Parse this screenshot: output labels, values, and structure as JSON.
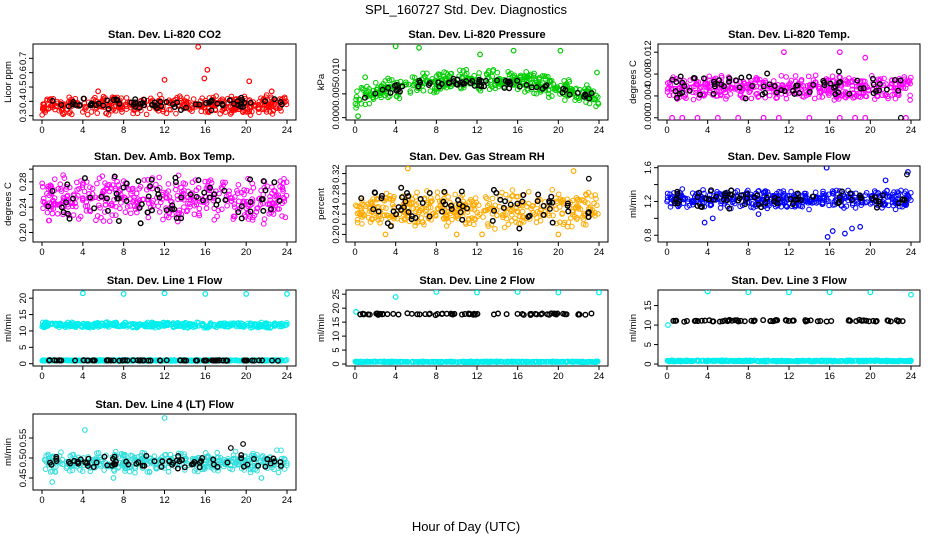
{
  "figure": {
    "title": "SPL_160727  Std. Dev. Diagnostics",
    "xlabel": "Hour of Day (UTC)"
  },
  "chart_data": [
    {
      "type": "scatter",
      "title": "Stan. Dev. Li-820 CO2",
      "ylabel": "Licor ppm",
      "xlim": [
        0,
        24
      ],
      "ylim": [
        0.27,
        0.8
      ],
      "xticks": [
        "0",
        "4",
        "8",
        "12",
        "16",
        "20",
        "24"
      ],
      "yticks": [
        0.3,
        0.4,
        0.5,
        0.6,
        0.7
      ],
      "ytick_labels": [
        "0.3",
        "0.4",
        "0.5",
        "0.6",
        "0.7"
      ],
      "series": [
        {
          "role": "all samples",
          "color": "#ff0000",
          "kind": "band",
          "x_range": [
            0,
            24
          ],
          "y_range": [
            0.3,
            0.45
          ],
          "outliers": [
            [
              15.3,
              0.78
            ],
            [
              16.2,
              0.62
            ],
            [
              15.9,
              0.56
            ],
            [
              12.0,
              0.55
            ],
            [
              20.3,
              0.54
            ],
            [
              5.5,
              0.47
            ],
            [
              22.5,
              0.47
            ]
          ]
        },
        {
          "role": "hourly subset",
          "color": "#000000",
          "kind": "band",
          "x_range": [
            0.5,
            23.5
          ],
          "y_range": [
            0.33,
            0.43
          ],
          "outliers": []
        }
      ]
    },
    {
      "type": "scatter",
      "title": "Stan. Dev. Li-820 Pressure",
      "ylabel": "kPa",
      "xlim": [
        0,
        24
      ],
      "ylim": [
        -0.0005,
        0.0155
      ],
      "xticks": [
        "0",
        "4",
        "8",
        "12",
        "16",
        "20",
        "24"
      ],
      "yticks": [
        0.0,
        0.005,
        0.01
      ],
      "ytick_labels": [
        "0.000",
        "0.005",
        "0.010"
      ],
      "series": [
        {
          "role": "all samples",
          "color": "#00cc00",
          "kind": "arch",
          "x_range": [
            0,
            24
          ],
          "y_base": 0.004,
          "y_peak": 0.008,
          "y_spread": 0.0025,
          "outliers": [
            [
              4.0,
              0.015
            ],
            [
              6.3,
              0.0147
            ],
            [
              12.3,
              0.0133
            ],
            [
              15.6,
              0.0141
            ],
            [
              20.2,
              0.0141
            ],
            [
              1.0,
              0.0085
            ],
            [
              23.8,
              0.0095
            ],
            [
              0.3,
              0.0003
            ]
          ]
        },
        {
          "role": "hourly subset",
          "color": "#000000",
          "kind": "arch",
          "x_range": [
            0.5,
            23.5
          ],
          "y_base": 0.004,
          "y_peak": 0.0075,
          "y_spread": 0.0012,
          "outliers": []
        }
      ]
    },
    {
      "type": "scatter",
      "title": "Stan. Dev. Li-820 Temp.",
      "ylabel": "degrees C",
      "xlim": [
        0,
        24
      ],
      "ylim": [
        -0.0004,
        0.0135
      ],
      "xticks": [
        "0",
        "4",
        "8",
        "12",
        "16",
        "20",
        "24"
      ],
      "yticks": [
        0.0,
        0.004,
        0.008,
        0.012
      ],
      "ytick_labels": [
        "0.000",
        "0.004",
        "0.008",
        "0.012"
      ],
      "series": [
        {
          "role": "all samples",
          "color": "#ff00ff",
          "kind": "band",
          "x_range": [
            0,
            24
          ],
          "y_range": [
            0.003,
            0.008
          ],
          "outliers": [
            [
              0.5,
              0.0
            ],
            [
              1.5,
              0.0
            ],
            [
              3.0,
              0.0
            ],
            [
              5.0,
              0.0
            ],
            [
              7.0,
              0.0
            ],
            [
              9.5,
              0.0
            ],
            [
              11.0,
              0.0
            ],
            [
              14.0,
              0.0
            ],
            [
              17.0,
              0.0
            ],
            [
              18.5,
              0.0
            ],
            [
              19.5,
              0.0
            ],
            [
              23.5,
              0.0
            ],
            [
              11.5,
              0.012
            ],
            [
              17.0,
              0.012
            ],
            [
              19.5,
              0.011
            ]
          ]
        },
        {
          "role": "hourly subset",
          "color": "#000000",
          "kind": "band",
          "x_range": [
            0.5,
            23.5
          ],
          "y_range": [
            0.003,
            0.009
          ],
          "outliers": [
            [
              23.0,
              0.0
            ]
          ]
        }
      ]
    },
    {
      "type": "scatter",
      "title": "Stan. Dev. Amb. Box Temp.",
      "ylabel": "degrees C",
      "xlim": [
        0,
        24
      ],
      "ylim": [
        0.185,
        0.305
      ],
      "xticks": [
        "0",
        "4",
        "8",
        "12",
        "16",
        "20",
        "24"
      ],
      "yticks": [
        0.2,
        0.22,
        0.24,
        0.26,
        0.28,
        0.3
      ],
      "ytick_labels": [
        "0.20",
        "",
        "0.24",
        "",
        "0.28",
        ""
      ],
      "series": [
        {
          "role": "all samples",
          "color": "#ff00ff",
          "kind": "band",
          "x_range": [
            0,
            24
          ],
          "y_range": [
            0.21,
            0.295
          ],
          "outliers": []
        },
        {
          "role": "hourly subset",
          "color": "#000000",
          "kind": "band",
          "x_range": [
            0.5,
            23.5
          ],
          "y_range": [
            0.21,
            0.29
          ],
          "outliers": []
        }
      ]
    },
    {
      "type": "scatter",
      "title": "Stan. Dev. Gas Stream RH",
      "ylabel": "percent",
      "xlim": [
        0,
        24
      ],
      "ylim": [
        0.185,
        0.335
      ],
      "xticks": [
        "0",
        "4",
        "8",
        "12",
        "16",
        "20",
        "24"
      ],
      "yticks": [
        0.2,
        0.22,
        0.24,
        0.26,
        0.28,
        0.3,
        0.32
      ],
      "ytick_labels": [
        "0.20",
        "",
        "0.24",
        "",
        "0.28",
        "",
        "0.32"
      ],
      "series": [
        {
          "role": "all samples",
          "color": "#ffaa00",
          "kind": "band",
          "x_range": [
            0,
            24
          ],
          "y_range": [
            0.21,
            0.29
          ],
          "outliers": [
            [
              5.2,
              0.33
            ],
            [
              21.5,
              0.325
            ],
            [
              3.0,
              0.2
            ],
            [
              10.0,
              0.2
            ],
            [
              12.5,
              0.2
            ],
            [
              20.0,
              0.2
            ]
          ]
        },
        {
          "role": "hourly subset",
          "color": "#000000",
          "kind": "band",
          "x_range": [
            0.5,
            23.5
          ],
          "y_range": [
            0.21,
            0.3
          ],
          "outliers": [
            [
              23.0,
              0.31
            ]
          ]
        }
      ]
    },
    {
      "type": "scatter",
      "title": "Stan. Dev. Sample Flow",
      "ylabel": "ml/min",
      "xlim": [
        0,
        24
      ],
      "ylim": [
        0.72,
        1.62
      ],
      "xticks": [
        "0",
        "4",
        "8",
        "12",
        "16",
        "20",
        "24"
      ],
      "yticks": [
        0.8,
        1.0,
        1.2,
        1.4,
        1.6
      ],
      "ytick_labels": [
        "0.8",
        "",
        "1.2",
        "",
        "1.6"
      ],
      "series": [
        {
          "role": "all samples",
          "color": "#0000ff",
          "kind": "band",
          "x_range": [
            0,
            24
          ],
          "y_range": [
            1.1,
            1.35
          ],
          "outliers": [
            [
              15.7,
              1.6
            ],
            [
              15.8,
              0.78
            ],
            [
              16.3,
              0.85
            ],
            [
              17.5,
              0.82
            ],
            [
              18.2,
              0.88
            ],
            [
              19.0,
              0.9
            ],
            [
              3.7,
              0.95
            ],
            [
              4.5,
              1.0
            ],
            [
              9.0,
              1.05
            ],
            [
              21.5,
              1.45
            ],
            [
              23.7,
              1.55
            ]
          ]
        },
        {
          "role": "hourly subset",
          "color": "#000000",
          "kind": "band",
          "x_range": [
            0.5,
            23.5
          ],
          "y_range": [
            1.1,
            1.35
          ],
          "outliers": [
            [
              23.6,
              1.52
            ]
          ]
        }
      ]
    },
    {
      "type": "scatter",
      "title": "Stan. Dev. Line 1 Flow",
      "ylabel": "ml/min",
      "xlim": [
        0,
        24
      ],
      "ylim": [
        -0.7,
        22.5
      ],
      "xticks": [
        "0",
        "4",
        "8",
        "12",
        "16",
        "20",
        "24"
      ],
      "yticks": [
        0,
        5,
        10,
        15,
        20
      ],
      "ytick_labels": [
        "0",
        "5",
        "10",
        "15",
        "20"
      ],
      "series": [
        {
          "role": "all samples",
          "color": "#00eeee",
          "kind": "band",
          "x_range": [
            0,
            24
          ],
          "y_range": [
            10.8,
            12.8
          ],
          "outliers": [
            [
              4.0,
              21.5
            ],
            [
              8.0,
              21.3
            ],
            [
              12.0,
              21.5
            ],
            [
              16.0,
              21.3
            ],
            [
              20.0,
              21.3
            ],
            [
              24.0,
              21.3
            ]
          ]
        },
        {
          "role": "all samples (low)",
          "color": "#00eeee",
          "kind": "band",
          "x_range": [
            0,
            24
          ],
          "y_range": [
            0.8,
            1.2
          ],
          "outliers": []
        },
        {
          "role": "hourly subset",
          "color": "#000000",
          "kind": "band",
          "x_range": [
            0.5,
            23.5
          ],
          "y_range": [
            0.9,
            1.1
          ],
          "outliers": []
        }
      ]
    },
    {
      "type": "scatter",
      "title": "Stan. Dev. Line 2 Flow",
      "ylabel": "ml/min",
      "xlim": [
        0,
        24
      ],
      "ylim": [
        -0.7,
        26.5
      ],
      "xticks": [
        "0",
        "4",
        "8",
        "12",
        "16",
        "20",
        "24"
      ],
      "yticks": [
        0,
        5,
        10,
        15,
        20,
        25
      ],
      "ytick_labels": [
        "0",
        "5",
        "10",
        "15",
        "20",
        "25"
      ],
      "series": [
        {
          "role": "all samples",
          "color": "#00eeee",
          "kind": "band",
          "x_range": [
            0,
            24
          ],
          "y_range": [
            0.6,
            1.0
          ],
          "outliers": [
            [
              0.1,
              18.7
            ],
            [
              4.0,
              24.0
            ],
            [
              8.0,
              25.8
            ],
            [
              12.0,
              25.6
            ],
            [
              16.0,
              25.8
            ],
            [
              20.0,
              25.6
            ],
            [
              24.0,
              25.6
            ]
          ]
        },
        {
          "role": "hourly subset",
          "color": "#000000",
          "kind": "band",
          "x_range": [
            0.5,
            23.5
          ],
          "y_range": [
            17.5,
            18.2
          ],
          "outliers": []
        }
      ]
    },
    {
      "type": "scatter",
      "title": "Stan. Dev. Line 3 Flow",
      "ylabel": "ml/min",
      "xlim": [
        0,
        24
      ],
      "ylim": [
        -0.5,
        19
      ],
      "xticks": [
        "0",
        "4",
        "8",
        "12",
        "16",
        "20",
        "24"
      ],
      "yticks": [
        0,
        5,
        10,
        15
      ],
      "ytick_labels": [
        "0",
        "5",
        "10",
        "15"
      ],
      "series": [
        {
          "role": "all samples",
          "color": "#00eeee",
          "kind": "band",
          "x_range": [
            0,
            24
          ],
          "y_range": [
            0.6,
            1.0
          ],
          "outliers": [
            [
              0.1,
              10.0
            ],
            [
              4.0,
              18.6
            ],
            [
              8.0,
              18.4
            ],
            [
              12.0,
              18.4
            ],
            [
              16.0,
              18.4
            ],
            [
              20.0,
              18.4
            ],
            [
              24.0,
              17.8
            ]
          ]
        },
        {
          "role": "hourly subset",
          "color": "#000000",
          "kind": "band",
          "x_range": [
            0.5,
            23.5
          ],
          "y_range": [
            10.8,
            11.4
          ],
          "outliers": []
        }
      ]
    },
    {
      "type": "scatter",
      "title": "Stan. Dev. Line 4 (LT) Flow",
      "ylabel": "ml/min",
      "xlim": [
        0,
        24
      ],
      "ylim": [
        0.42,
        0.61
      ],
      "xticks": [
        "0",
        "4",
        "8",
        "12",
        "16",
        "20",
        "24"
      ],
      "yticks": [
        0.45,
        0.5,
        0.55
      ],
      "ytick_labels": [
        "0.45",
        "0.50",
        "0.55"
      ],
      "series": [
        {
          "role": "all samples",
          "color": "#33dddd",
          "kind": "band",
          "x_range": [
            0,
            24
          ],
          "y_range": [
            0.46,
            0.52
          ],
          "outliers": [
            [
              4.2,
              0.57
            ],
            [
              12.0,
              0.6
            ],
            [
              7.0,
              0.45
            ],
            [
              21.5,
              0.45
            ],
            [
              1.0,
              0.44
            ]
          ]
        },
        {
          "role": "hourly subset",
          "color": "#000000",
          "kind": "band",
          "x_range": [
            0.5,
            23.5
          ],
          "y_range": [
            0.47,
            0.51
          ],
          "outliers": [
            [
              19.7,
              0.535
            ],
            [
              18.5,
              0.525
            ]
          ]
        }
      ]
    }
  ]
}
